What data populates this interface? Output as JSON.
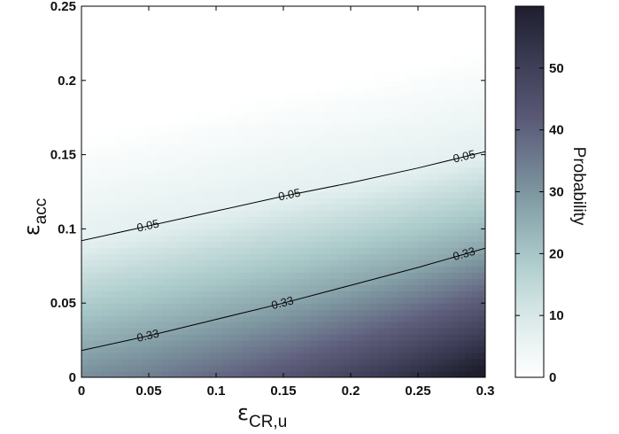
{
  "chart_data": {
    "type": "heatmap",
    "title": "",
    "xlabel": {
      "symbol": "ε",
      "subscript": "CR,u"
    },
    "ylabel": {
      "symbol": "ε",
      "subscript": "acc"
    },
    "xlim": [
      0,
      0.3
    ],
    "ylim": [
      0,
      0.25
    ],
    "x_ticks": [
      "0",
      "0.05",
      "0.1",
      "0.15",
      "0.2",
      "0.25",
      "0.3"
    ],
    "y_ticks": [
      "0",
      "0.05",
      "0.1",
      "0.15",
      "0.2",
      "0.25"
    ],
    "x_tick_values": [
      0,
      0.05,
      0.1,
      0.15,
      0.2,
      0.25,
      0.3
    ],
    "y_tick_values": [
      0,
      0.05,
      0.1,
      0.15,
      0.2,
      0.25
    ],
    "colorbar": {
      "label": "Probability",
      "range": [
        0,
        60
      ],
      "ticks": [
        "0",
        "10",
        "20",
        "30",
        "40",
        "50"
      ],
      "tick_values": [
        0,
        10,
        20,
        30,
        40,
        50
      ],
      "colormap": "bone-reversed",
      "color_low": "#ffffff",
      "color_high": "#1e1e2e"
    },
    "contours": [
      {
        "level_label": "0.05",
        "x": [
          0,
          0.05,
          0.1,
          0.15,
          0.2,
          0.25,
          0.3
        ],
        "y": [
          0.092,
          0.102,
          0.112,
          0.122,
          0.131,
          0.141,
          0.152
        ],
        "label_positions": [
          0.05,
          0.155,
          0.285
        ]
      },
      {
        "level_label": "0.33",
        "x": [
          0,
          0.05,
          0.1,
          0.15,
          0.2,
          0.25,
          0.3
        ],
        "y": [
          0.018,
          0.028,
          0.039,
          0.05,
          0.062,
          0.074,
          0.087
        ],
        "label_positions": [
          0.05,
          0.15,
          0.285
        ]
      }
    ],
    "grid": false,
    "legend": "colorbar-right"
  }
}
